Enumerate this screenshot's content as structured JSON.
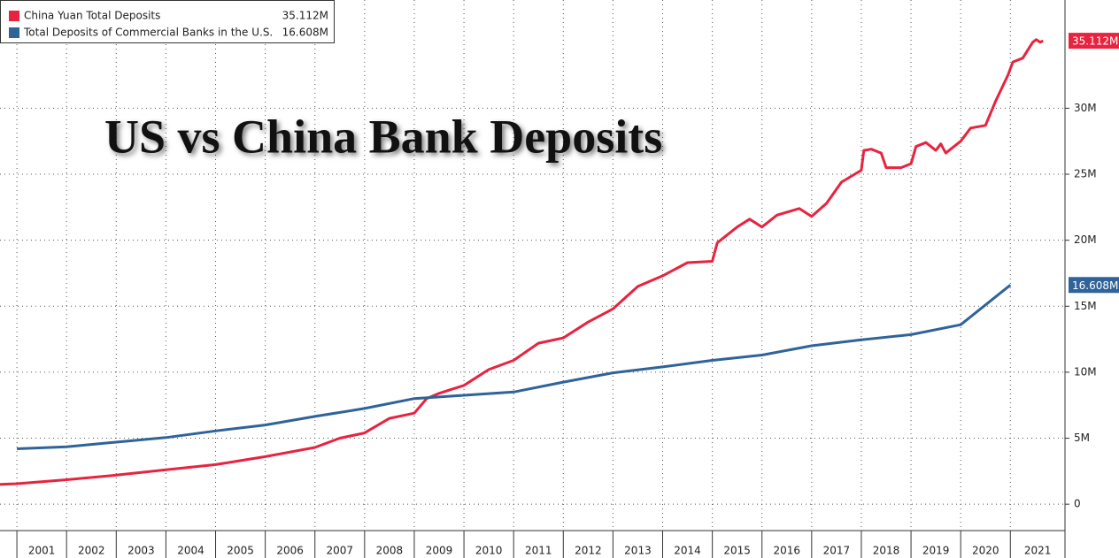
{
  "chart_data": {
    "type": "line",
    "title": "US vs China Bank Deposits",
    "xlim": [
      2000.66,
      2022.1
    ],
    "xticks": [
      {
        "value": 2001,
        "label": "2001"
      },
      {
        "value": 2002,
        "label": "2002"
      },
      {
        "value": 2003,
        "label": "2003"
      },
      {
        "value": 2004,
        "label": "2004"
      },
      {
        "value": 2005,
        "label": "2005"
      },
      {
        "value": 2006,
        "label": "2006"
      },
      {
        "value": 2007,
        "label": "2007"
      },
      {
        "value": 2008,
        "label": "2008"
      },
      {
        "value": 2009,
        "label": "2009"
      },
      {
        "value": 2010,
        "label": "2010"
      },
      {
        "value": 2011,
        "label": "2011"
      },
      {
        "value": 2012,
        "label": "2012"
      },
      {
        "value": 2013,
        "label": "2013"
      },
      {
        "value": 2014,
        "label": "2014"
      },
      {
        "value": 2015,
        "label": "2015"
      },
      {
        "value": 2016,
        "label": "2016"
      },
      {
        "value": 2017,
        "label": "2017"
      },
      {
        "value": 2018,
        "label": "2018"
      },
      {
        "value": 2019,
        "label": "2019"
      },
      {
        "value": 2020,
        "label": "2020"
      },
      {
        "value": 2021,
        "label": "2021"
      }
    ],
    "ylim": [
      -2,
      38.2
    ],
    "yticks": [
      0,
      {
        "value": 5,
        "label": "5M"
      },
      {
        "value": 10,
        "label": "10M"
      },
      {
        "value": 15,
        "label": "15M"
      },
      {
        "value": 20,
        "label": "20M"
      },
      {
        "value": 25,
        "label": "25M"
      },
      {
        "value": 30,
        "label": "30M"
      }
    ],
    "grid": true,
    "series": [
      {
        "name": "China Yuan Total Deposits",
        "color": "#e8233f",
        "value_label": "35.112M",
        "x": [
          2000.66,
          2001,
          2002,
          2003,
          2004,
          2005,
          2005.5,
          2006,
          2007,
          2007.5,
          2008,
          2008.5,
          2009,
          2009.25,
          2009.5,
          2010,
          2010.5,
          2011,
          2011.5,
          2012,
          2012.5,
          2013,
          2013.5,
          2014,
          2014.5,
          2015,
          2015.1,
          2015.5,
          2015.75,
          2016,
          2016.3,
          2016.75,
          2017,
          2017.3,
          2017.6,
          2018,
          2018.05,
          2018.2,
          2018.4,
          2018.5,
          2018.8,
          2019,
          2019.1,
          2019.3,
          2019.5,
          2019.6,
          2019.7,
          2020,
          2020.2,
          2020.5,
          2020.7,
          2020.95,
          2021.05,
          2021.25,
          2021.45,
          2021.52,
          2021.6,
          2021.66
        ],
        "values": [
          1.5,
          1.55,
          1.85,
          2.2,
          2.6,
          3.0,
          3.3,
          3.6,
          4.3,
          5.0,
          5.4,
          6.5,
          6.9,
          8.0,
          8.4,
          9.0,
          10.2,
          10.9,
          12.2,
          12.6,
          13.8,
          14.8,
          16.5,
          17.3,
          18.3,
          18.4,
          19.8,
          21.0,
          21.6,
          21.0,
          21.9,
          22.4,
          21.8,
          22.8,
          24.4,
          25.3,
          26.8,
          26.9,
          26.6,
          25.5,
          25.5,
          25.8,
          27.1,
          27.4,
          26.8,
          27.3,
          26.6,
          27.5,
          28.5,
          28.7,
          30.5,
          32.5,
          33.5,
          33.8,
          35.0,
          35.2,
          35.0,
          35.112
        ]
      },
      {
        "name": "Total Deposits of Commercial Banks in the U.S.",
        "color": "#2f6399",
        "value_label": "16.608M",
        "x": [
          2001,
          2002,
          2003,
          2004,
          2005,
          2006,
          2007,
          2008,
          2009,
          2010,
          2011,
          2012,
          2013,
          2014,
          2015,
          2016,
          2017,
          2018,
          2019,
          2020,
          2021
        ],
        "values": [
          4.2,
          4.35,
          4.7,
          5.05,
          5.55,
          6.0,
          6.65,
          7.25,
          8.0,
          8.25,
          8.5,
          9.25,
          9.95,
          10.4,
          10.9,
          11.3,
          12.0,
          12.45,
          12.85,
          13.6,
          16.608
        ]
      }
    ]
  }
}
